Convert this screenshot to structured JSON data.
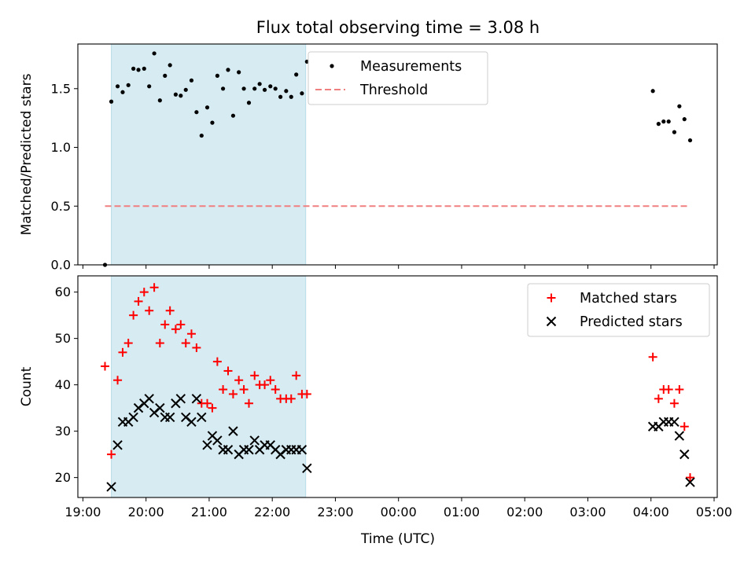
{
  "chart_data": {
    "type": "scatter",
    "title": "Flux total observing time = 3.08 h",
    "xlabel": "Time (UTC)",
    "x_tick_labels": [
      "19:00",
      "20:00",
      "21:00",
      "22:00",
      "23:00",
      "00:00",
      "01:00",
      "02:00",
      "03:00",
      "04:00",
      "05:00"
    ],
    "x_range_hours": [
      18.92,
      29.05
    ],
    "shaded_interval_hours": [
      19.45,
      22.53
    ],
    "shade_color": "#add8e6",
    "panels": [
      {
        "ylabel": "Matched/Predicted stars",
        "ylim": [
          0,
          1.88
        ],
        "y_ticks": [
          "0.0",
          "0.5",
          "1.0",
          "1.5"
        ],
        "y_tick_values": [
          0,
          0.5,
          1.0,
          1.5
        ],
        "legend": {
          "placement": "upper-center",
          "entries": [
            "Measurements",
            "Threshold"
          ]
        },
        "series": [
          {
            "name": "Measurements",
            "marker": "dot",
            "color": "#000000",
            "x": [
              19.35,
              19.45,
              19.55,
              19.63,
              19.72,
              19.8,
              19.88,
              19.97,
              20.05,
              20.13,
              20.22,
              20.3,
              20.38,
              20.47,
              20.55,
              20.63,
              20.72,
              20.8,
              20.88,
              20.97,
              21.05,
              21.13,
              21.22,
              21.3,
              21.38,
              21.47,
              21.55,
              21.63,
              21.72,
              21.8,
              21.88,
              21.97,
              22.05,
              22.13,
              22.22,
              22.3,
              22.38,
              22.47,
              22.55,
              28.03,
              28.12,
              28.2,
              28.28,
              28.37,
              28.45,
              28.53,
              28.62
            ],
            "y": [
              0.0,
              1.39,
              1.52,
              1.47,
              1.53,
              1.67,
              1.66,
              1.67,
              1.52,
              1.8,
              1.4,
              1.61,
              1.7,
              1.45,
              1.44,
              1.49,
              1.57,
              1.3,
              1.1,
              1.34,
              1.21,
              1.61,
              1.5,
              1.66,
              1.27,
              1.64,
              1.5,
              1.38,
              1.5,
              1.54,
              1.49,
              1.52,
              1.5,
              1.43,
              1.48,
              1.43,
              1.62,
              1.46,
              1.73,
              1.48,
              1.2,
              1.22,
              1.22,
              1.13,
              1.35,
              1.24,
              1.06
            ]
          },
          {
            "name": "Threshold",
            "style": "dashed",
            "color": "#f08080",
            "x": [
              19.35,
              28.62
            ],
            "y": [
              0.5,
              0.5
            ]
          }
        ]
      },
      {
        "ylabel": "Count",
        "ylim": [
          15.7,
          63.5
        ],
        "y_ticks": [
          "20",
          "30",
          "40",
          "50",
          "60"
        ],
        "y_tick_values": [
          20,
          30,
          40,
          50,
          60
        ],
        "legend": {
          "placement": "upper-right",
          "entries": [
            "Matched stars",
            "Predicted stars"
          ]
        },
        "series": [
          {
            "name": "Matched stars",
            "marker": "plus",
            "color": "#ff0000",
            "x": [
              19.35,
              19.45,
              19.55,
              19.63,
              19.72,
              19.8,
              19.88,
              19.97,
              20.05,
              20.13,
              20.22,
              20.3,
              20.38,
              20.47,
              20.55,
              20.63,
              20.72,
              20.8,
              20.88,
              20.97,
              21.05,
              21.13,
              21.22,
              21.3,
              21.38,
              21.47,
              21.55,
              21.63,
              21.72,
              21.8,
              21.88,
              21.97,
              22.05,
              22.13,
              22.22,
              22.3,
              22.38,
              22.47,
              22.55,
              28.03,
              28.12,
              28.2,
              28.28,
              28.37,
              28.45,
              28.53,
              28.62
            ],
            "y": [
              44,
              25,
              41,
              47,
              49,
              55,
              58,
              60,
              56,
              61,
              49,
              53,
              56,
              52,
              53,
              49,
              51,
              48,
              36,
              36,
              35,
              45,
              39,
              43,
              38,
              41,
              39,
              36,
              42,
              40,
              40,
              41,
              39,
              37,
              37,
              37,
              42,
              38,
              38,
              46,
              37,
              39,
              39,
              36,
              39,
              31,
              20
            ]
          },
          {
            "name": "Predicted stars",
            "marker": "x",
            "color": "#000000",
            "x": [
              19.45,
              19.55,
              19.63,
              19.72,
              19.8,
              19.88,
              19.97,
              20.05,
              20.13,
              20.22,
              20.3,
              20.38,
              20.47,
              20.55,
              20.63,
              20.72,
              20.8,
              20.88,
              20.97,
              21.05,
              21.13,
              21.22,
              21.3,
              21.38,
              21.47,
              21.55,
              21.63,
              21.72,
              21.8,
              21.88,
              21.97,
              22.05,
              22.13,
              22.22,
              22.3,
              22.38,
              22.47,
              22.55,
              28.03,
              28.12,
              28.2,
              28.28,
              28.37,
              28.45,
              28.53,
              28.62
            ],
            "y": [
              18,
              27,
              32,
              32,
              33,
              35,
              36,
              37,
              34,
              35,
              33,
              33,
              36,
              37,
              33,
              32,
              37,
              33,
              27,
              29,
              28,
              26,
              26,
              30,
              25,
              26,
              26,
              28,
              26,
              27,
              27,
              26,
              25,
              26,
              26,
              26,
              26,
              22,
              31,
              31,
              32,
              32,
              32,
              29,
              25,
              19
            ]
          }
        ]
      }
    ]
  }
}
